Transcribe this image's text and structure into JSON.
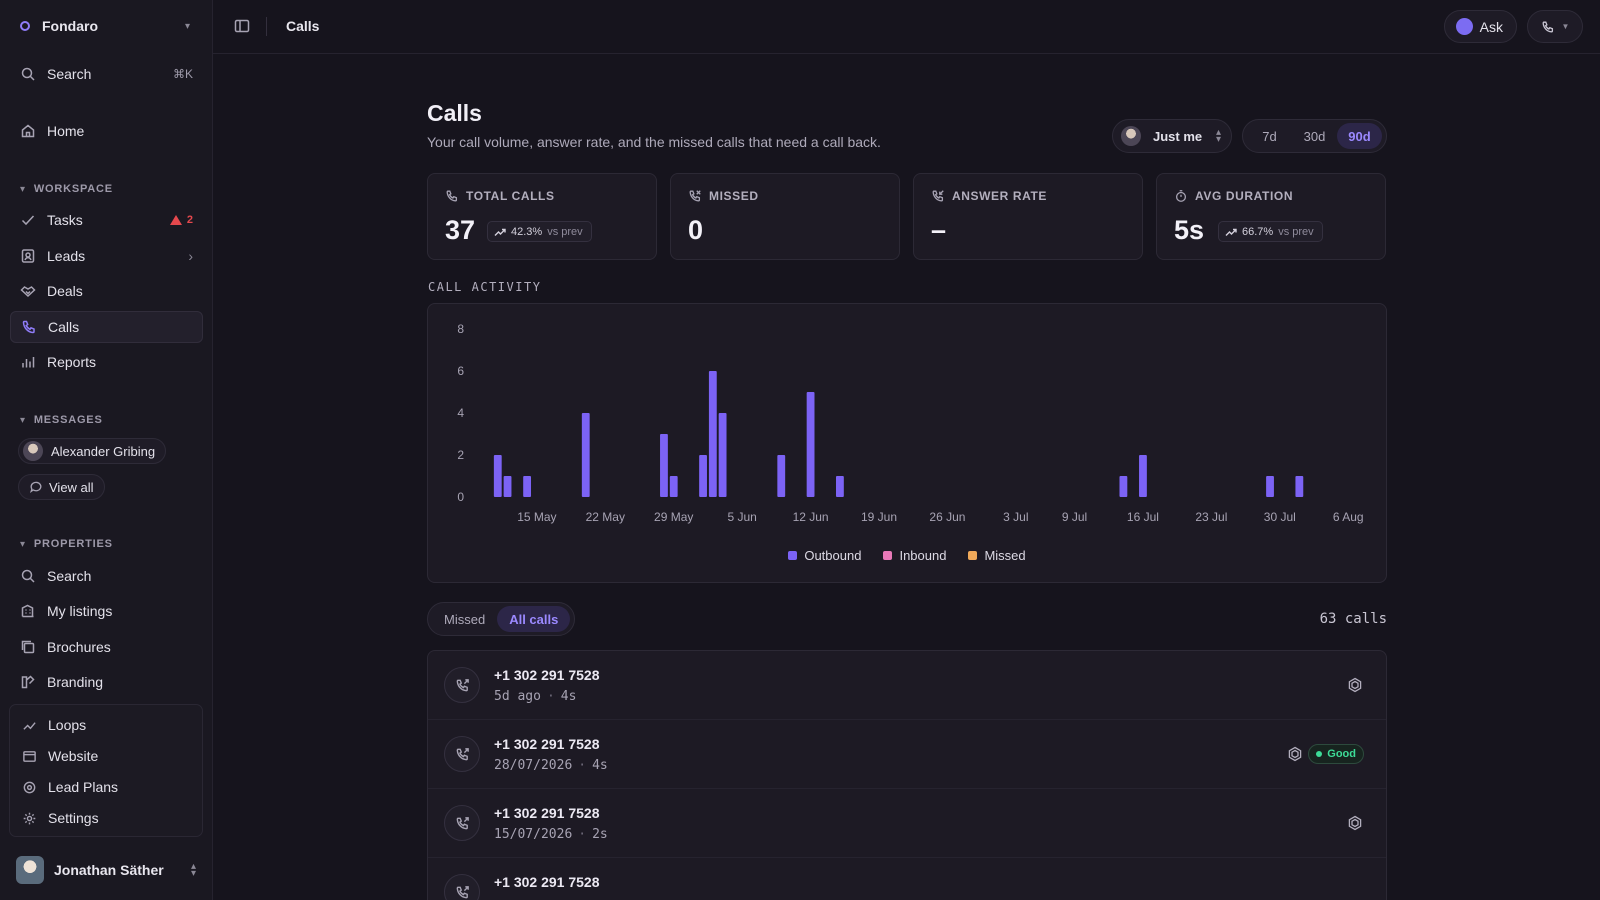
{
  "sidebar": {
    "workspace": "Fondaro",
    "search_label": "Search",
    "search_shortcut": "⌘K",
    "home": "Home",
    "workspace_section": "WORKSPACE",
    "tasks": "Tasks",
    "tasks_alerts": "2",
    "leads": "Leads",
    "deals": "Deals",
    "calls": "Calls",
    "reports": "Reports",
    "messages_section": "MESSAGES",
    "contact": "Alexander Gribing",
    "view_all": "View all",
    "properties_section": "PROPERTIES",
    "prop_search": "Search",
    "my_listings": "My listings",
    "brochures": "Brochures",
    "branding": "Branding",
    "loops": "Loops",
    "website": "Website",
    "lead_plans": "Lead Plans",
    "settings": "Settings",
    "user_name": "Jonathan Säther"
  },
  "topbar": {
    "title": "Calls",
    "ask": "Ask"
  },
  "page": {
    "title": "Calls",
    "subtitle": "Your call volume, answer rate, and the missed calls that need a call back.",
    "owner_filter": "Just me",
    "ranges": [
      "7d",
      "30d",
      "90d"
    ],
    "active_range": "90d"
  },
  "stats": {
    "total": {
      "label": "TOTAL CALLS",
      "value": "37",
      "delta": "42.3%",
      "vs": "vs prev"
    },
    "missed": {
      "label": "MISSED",
      "value": "0"
    },
    "answer": {
      "label": "ANSWER RATE",
      "value": "–"
    },
    "avg": {
      "label": "AVG DURATION",
      "value": "5s",
      "delta": "66.7%",
      "vs": "vs prev"
    }
  },
  "activity_label": "CALL ACTIVITY",
  "chart_data": {
    "type": "bar",
    "title": "",
    "xlabel": "",
    "ylabel": "",
    "ylim": [
      0,
      8
    ],
    "yticks": [
      0,
      2,
      4,
      6,
      8
    ],
    "x_start": "2026-05-10",
    "x_end": "2026-08-07",
    "x_tick_labels": [
      "15 May",
      "22 May",
      "29 May",
      "5 Jun",
      "12 Jun",
      "19 Jun",
      "26 Jun",
      "3 Jul",
      "9 Jul",
      "16 Jul",
      "23 Jul",
      "30 Jul",
      "6 Aug"
    ],
    "x_tick_dates": [
      "2026-05-15",
      "2026-05-22",
      "2026-05-29",
      "2026-06-05",
      "2026-06-12",
      "2026-06-19",
      "2026-06-26",
      "2026-07-03",
      "2026-07-09",
      "2026-07-16",
      "2026-07-23",
      "2026-07-30",
      "2026-08-06"
    ],
    "series": [
      {
        "name": "Outbound",
        "color": "#7c63f5",
        "points": [
          [
            "2026-05-11",
            2
          ],
          [
            "2026-05-12",
            1
          ],
          [
            "2026-05-14",
            1
          ],
          [
            "2026-05-20",
            4
          ],
          [
            "2026-05-28",
            3
          ],
          [
            "2026-05-29",
            1
          ],
          [
            "2026-06-01",
            2
          ],
          [
            "2026-06-02",
            6
          ],
          [
            "2026-06-03",
            4
          ],
          [
            "2026-06-09",
            2
          ],
          [
            "2026-06-12",
            5
          ],
          [
            "2026-06-15",
            1
          ],
          [
            "2026-07-14",
            1
          ],
          [
            "2026-07-16",
            2
          ],
          [
            "2026-07-29",
            1
          ],
          [
            "2026-08-01",
            1
          ]
        ]
      },
      {
        "name": "Inbound",
        "color": "#e879b8",
        "points": []
      },
      {
        "name": "Missed",
        "color": "#f0a95a",
        "points": []
      }
    ],
    "legend_position": "bottom"
  },
  "list": {
    "tabs": [
      "Missed",
      "All calls"
    ],
    "active_tab": "All calls",
    "count": "63 calls",
    "calls": [
      {
        "number": "+1 302 291 7528",
        "when": "5d ago",
        "duration": "4s",
        "rating": ""
      },
      {
        "number": "+1 302 291 7528",
        "when": "28/07/2026",
        "duration": "4s",
        "rating": "Good"
      },
      {
        "number": "+1 302 291 7528",
        "when": "15/07/2026",
        "duration": "2s",
        "rating": ""
      },
      {
        "number": "+1 302 291 7528",
        "when": "",
        "duration": "",
        "rating": ""
      }
    ]
  }
}
